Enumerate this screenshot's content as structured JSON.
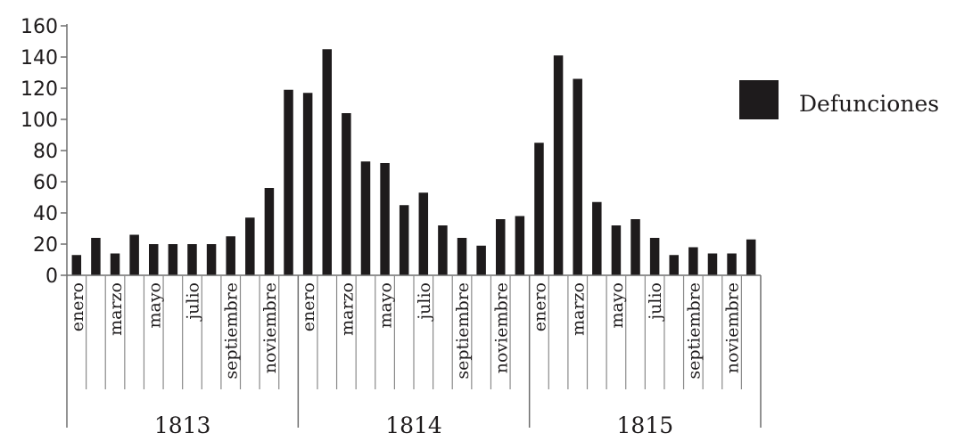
{
  "chart_data": {
    "type": "bar",
    "years": [
      "1813",
      "1814",
      "1815"
    ],
    "month_labels": [
      "enero",
      "",
      "marzo",
      "",
      "mayo",
      "",
      "julio",
      "",
      "septiembre",
      "",
      "noviembre",
      ""
    ],
    "series": [
      {
        "name": "Defunciones",
        "values": [
          13,
          24,
          14,
          26,
          20,
          20,
          20,
          20,
          25,
          37,
          56,
          119,
          117,
          145,
          104,
          73,
          72,
          45,
          53,
          32,
          24,
          19,
          36,
          38,
          85,
          141,
          126,
          47,
          32,
          36,
          24,
          13,
          18,
          14,
          14,
          23
        ]
      }
    ],
    "ylim": [
      0,
      160
    ],
    "yticks": [
      0,
      20,
      40,
      60,
      80,
      100,
      120,
      140,
      160
    ],
    "color": "#1e1b1c",
    "legend_position": "right",
    "grid": false
  }
}
